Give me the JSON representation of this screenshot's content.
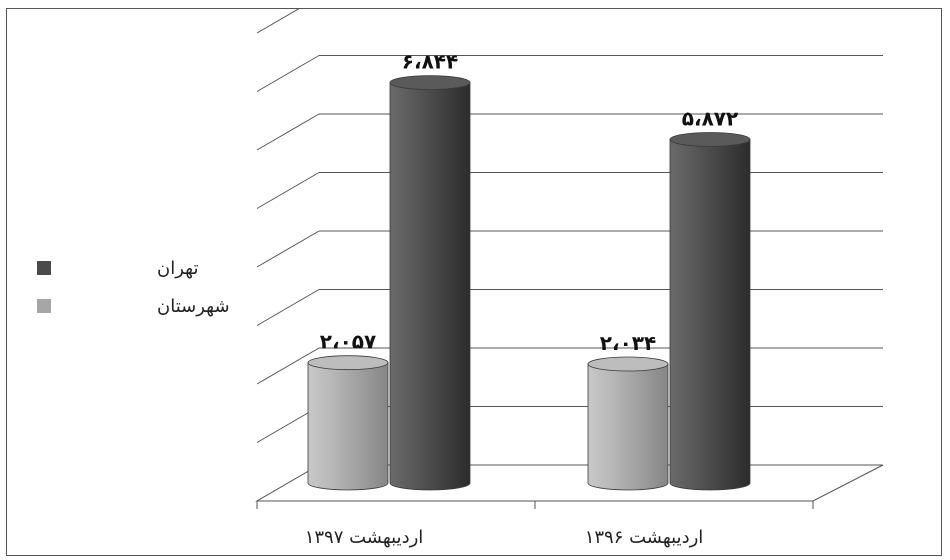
{
  "chart_data": {
    "type": "bar",
    "categories": [
      "اردیبهشت ۱۳۹۷",
      "اردیبهشت ۱۳۹۶"
    ],
    "series": [
      {
        "name": "شهرستان",
        "values": [
          2057,
          2034
        ],
        "labels": [
          "۲،۰۵۷",
          "۲،۰۳۴"
        ],
        "color": "#a6a6a6"
      },
      {
        "name": "تهران",
        "values": [
          6844,
          5872
        ],
        "labels": [
          "۶،۸۴۴",
          "۵،۸۷۲"
        ],
        "color": "#4a4a4a"
      }
    ],
    "ylim": [
      0,
      8000
    ],
    "grid": true,
    "legend": "left",
    "style": "3d-cylinder"
  }
}
